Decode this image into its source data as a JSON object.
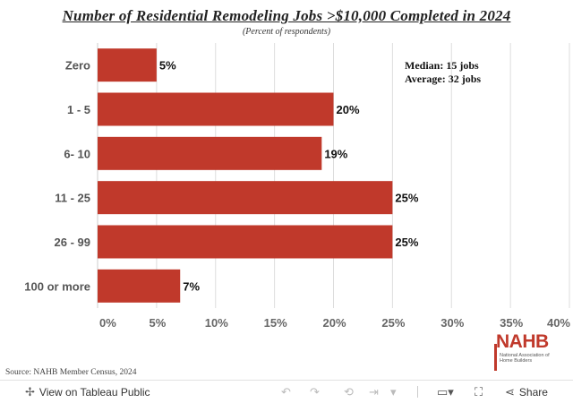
{
  "header": {
    "title": "Number of Residential Remodeling Jobs >$10,000 Completed in 2024",
    "subtitle": "(Percent of respondents)"
  },
  "annotations": {
    "median": "Median: 15 jobs",
    "average": "Average: 32 jobs"
  },
  "source": "Source: NAHB Member Census, 2024",
  "logo": {
    "text": "NAHB",
    "subtext": "National Association of Home Builders"
  },
  "toolbar": {
    "view_label": "View on Tableau Public",
    "share_label": "Share"
  },
  "colors": {
    "bar": "#c0392b",
    "grid": "#dddddd"
  },
  "chart_data": {
    "type": "bar",
    "orientation": "horizontal",
    "categories": [
      "Zero",
      "1 - 5",
      "6- 10",
      "11 - 25",
      "26 - 99",
      "100 or more"
    ],
    "values": [
      5,
      20,
      19,
      25,
      25,
      7
    ],
    "data_labels": [
      "5%",
      "20%",
      "19%",
      "25%",
      "25%",
      "7%"
    ],
    "x_ticks": [
      "0%",
      "5%",
      "10%",
      "15%",
      "20%",
      "25%",
      "30%",
      "35%",
      "40%"
    ],
    "xlim": [
      0,
      40
    ],
    "grid": true
  }
}
